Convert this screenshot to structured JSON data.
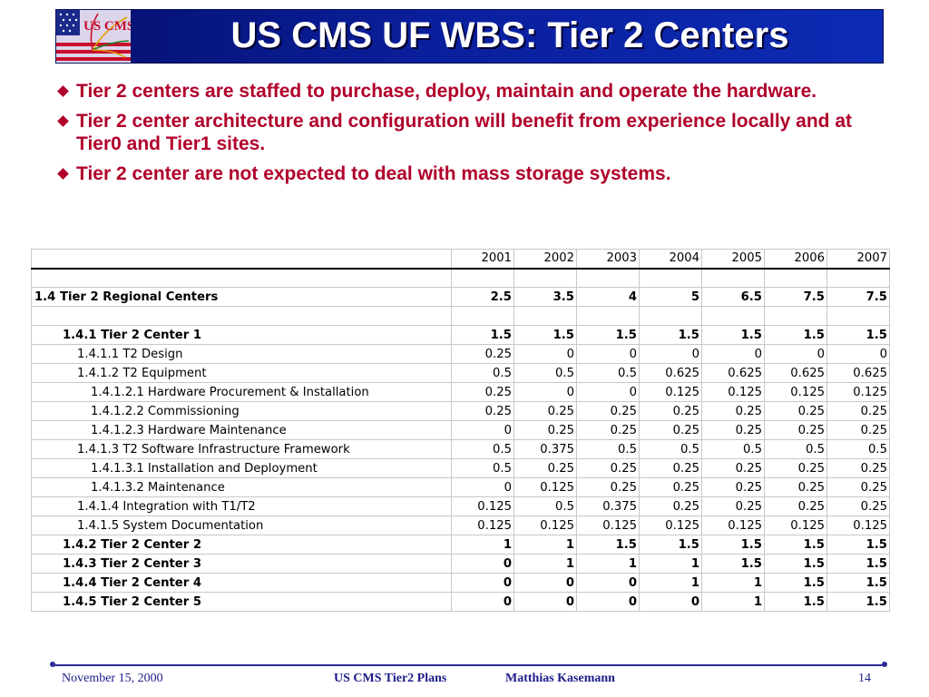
{
  "title": "US CMS UF WBS: Tier 2 Centers",
  "logo": {
    "text": "US CMS"
  },
  "bullets": [
    "Tier 2 centers are staffed to purchase, deploy, maintain and operate the hardware.",
    "Tier 2 center architecture and configuration will benefit from experience locally and at Tier0 and Tier1 sites.",
    "Tier 2 center are not expected to deal with mass storage systems."
  ],
  "table": {
    "years": [
      "2001",
      "2002",
      "2003",
      "2004",
      "2005",
      "2006",
      "2007"
    ],
    "rows": [
      {
        "label": "",
        "values": [
          "",
          "",
          "",
          "",
          "",
          "",
          ""
        ]
      },
      {
        "label": "1.4 Tier 2 Regional Centers",
        "values": [
          "2.5",
          "3.5",
          "4",
          "5",
          "6.5",
          "7.5",
          "7.5"
        ]
      },
      {
        "label": "",
        "values": [
          "",
          "",
          "",
          "",
          "",
          "",
          ""
        ]
      },
      {
        "label": "1.4.1 Tier 2 Center 1",
        "values": [
          "1.5",
          "1.5",
          "1.5",
          "1.5",
          "1.5",
          "1.5",
          "1.5"
        ]
      },
      {
        "label": "1.4.1.1 T2 Design",
        "values": [
          "0.25",
          "0",
          "0",
          "0",
          "0",
          "0",
          "0"
        ]
      },
      {
        "label": "1.4.1.2 T2 Equipment",
        "values": [
          "0.5",
          "0.5",
          "0.5",
          "0.625",
          "0.625",
          "0.625",
          "0.625"
        ]
      },
      {
        "label": "1.4.1.2.1 Hardware Procurement & Installation",
        "values": [
          "0.25",
          "0",
          "0",
          "0.125",
          "0.125",
          "0.125",
          "0.125"
        ]
      },
      {
        "label": "1.4.1.2.2 Commissioning",
        "values": [
          "0.25",
          "0.25",
          "0.25",
          "0.25",
          "0.25",
          "0.25",
          "0.25"
        ]
      },
      {
        "label": "1.4.1.2.3 Hardware Maintenance",
        "values": [
          "0",
          "0.25",
          "0.25",
          "0.25",
          "0.25",
          "0.25",
          "0.25"
        ]
      },
      {
        "label": "1.4.1.3 T2 Software Infrastructure Framework",
        "values": [
          "0.5",
          "0.375",
          "0.5",
          "0.5",
          "0.5",
          "0.5",
          "0.5"
        ]
      },
      {
        "label": "1.4.1.3.1 Installation and Deployment",
        "values": [
          "0.5",
          "0.25",
          "0.25",
          "0.25",
          "0.25",
          "0.25",
          "0.25"
        ]
      },
      {
        "label": "1.4.1.3.2 Maintenance",
        "values": [
          "0",
          "0.125",
          "0.25",
          "0.25",
          "0.25",
          "0.25",
          "0.25"
        ]
      },
      {
        "label": "1.4.1.4 Integration with T1/T2",
        "values": [
          "0.125",
          "0.5",
          "0.375",
          "0.25",
          "0.25",
          "0.25",
          "0.25"
        ]
      },
      {
        "label": "1.4.1.5 System Documentation",
        "values": [
          "0.125",
          "0.125",
          "0.125",
          "0.125",
          "0.125",
          "0.125",
          "0.125"
        ]
      },
      {
        "label": "1.4.2 Tier 2 Center 2",
        "values": [
          "1",
          "1",
          "1.5",
          "1.5",
          "1.5",
          "1.5",
          "1.5"
        ]
      },
      {
        "label": "1.4.3 Tier 2 Center 3",
        "values": [
          "0",
          "1",
          "1",
          "1",
          "1.5",
          "1.5",
          "1.5"
        ]
      },
      {
        "label": "1.4.4 Tier 2 Center 4",
        "values": [
          "0",
          "0",
          "0",
          "1",
          "1",
          "1.5",
          "1.5"
        ]
      },
      {
        "label": "1.4.5 Tier 2 Center 5",
        "values": [
          "0",
          "0",
          "0",
          "0",
          "1",
          "1.5",
          "1.5"
        ]
      }
    ]
  },
  "footer": {
    "date": "November 15, 2000",
    "center": "US CMS Tier2 Plans",
    "author": "Matthias Kasemann",
    "page": "14"
  },
  "colors": {
    "title_bg": "#0a1f9c",
    "bullet_text": "#b0002a",
    "footer_text": "#1c1c8c"
  }
}
